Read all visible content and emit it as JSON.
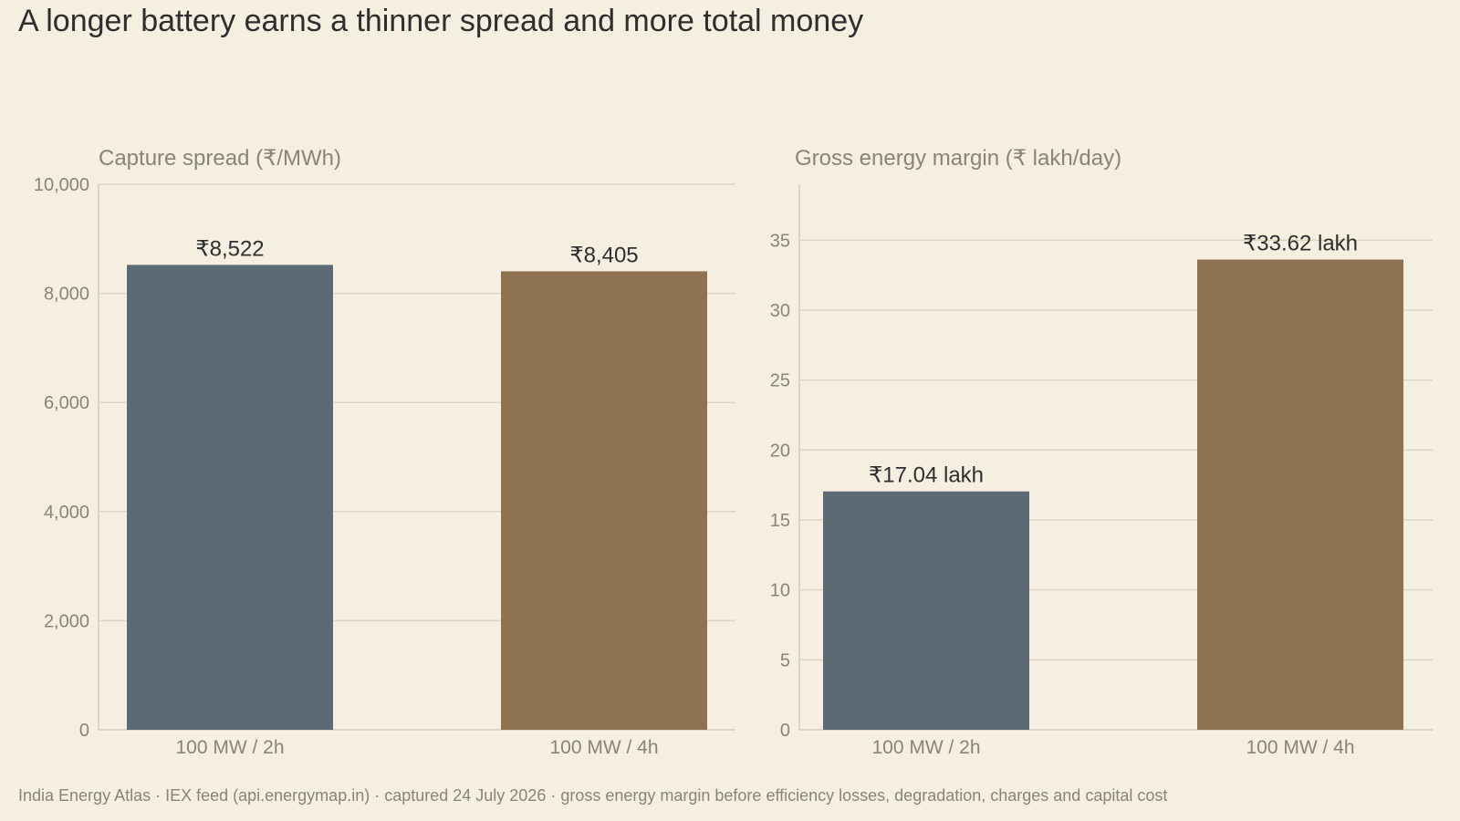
{
  "title": "A longer battery earns a thinner spread and more total money",
  "source_note": "India Energy Atlas · IEX feed (api.energymap.in) · captured 24 July 2026 · gross energy margin before efficiency losses, degradation, charges and capital cost",
  "colors": {
    "background": "#f5efe1",
    "grid": "#ddd5c0",
    "axis_text": "#8a8377",
    "label_text": "#2e2e2e",
    "series_2h": "#5b6a73",
    "series_4h": "#8f7250"
  },
  "chart_data": [
    {
      "type": "bar",
      "title": "Capture spread (₹/MWh)",
      "categories": [
        "100 MW / 2h",
        "100 MW / 4h"
      ],
      "values": [
        8522,
        8405
      ],
      "value_labels": [
        "₹8,522",
        "₹8,405"
      ],
      "ylim": [
        0,
        10000
      ],
      "yticks": [
        0,
        2000,
        4000,
        6000,
        8000,
        10000
      ],
      "ytick_labels": [
        "0",
        "2,000",
        "4,000",
        "6,000",
        "8,000",
        "10,000"
      ],
      "grid": true
    },
    {
      "type": "bar",
      "title": "Gross energy margin (₹ lakh/day)",
      "categories": [
        "100 MW / 2h",
        "100 MW / 4h"
      ],
      "values": [
        17.04,
        33.62
      ],
      "value_labels": [
        "₹17.04 lakh",
        "₹33.62 lakh"
      ],
      "ylim": [
        0,
        39
      ],
      "yticks": [
        0,
        5,
        10,
        15,
        20,
        25,
        30,
        35
      ],
      "ytick_labels": [
        "0",
        "5",
        "10",
        "15",
        "20",
        "25",
        "30",
        "35"
      ],
      "grid": true
    }
  ]
}
